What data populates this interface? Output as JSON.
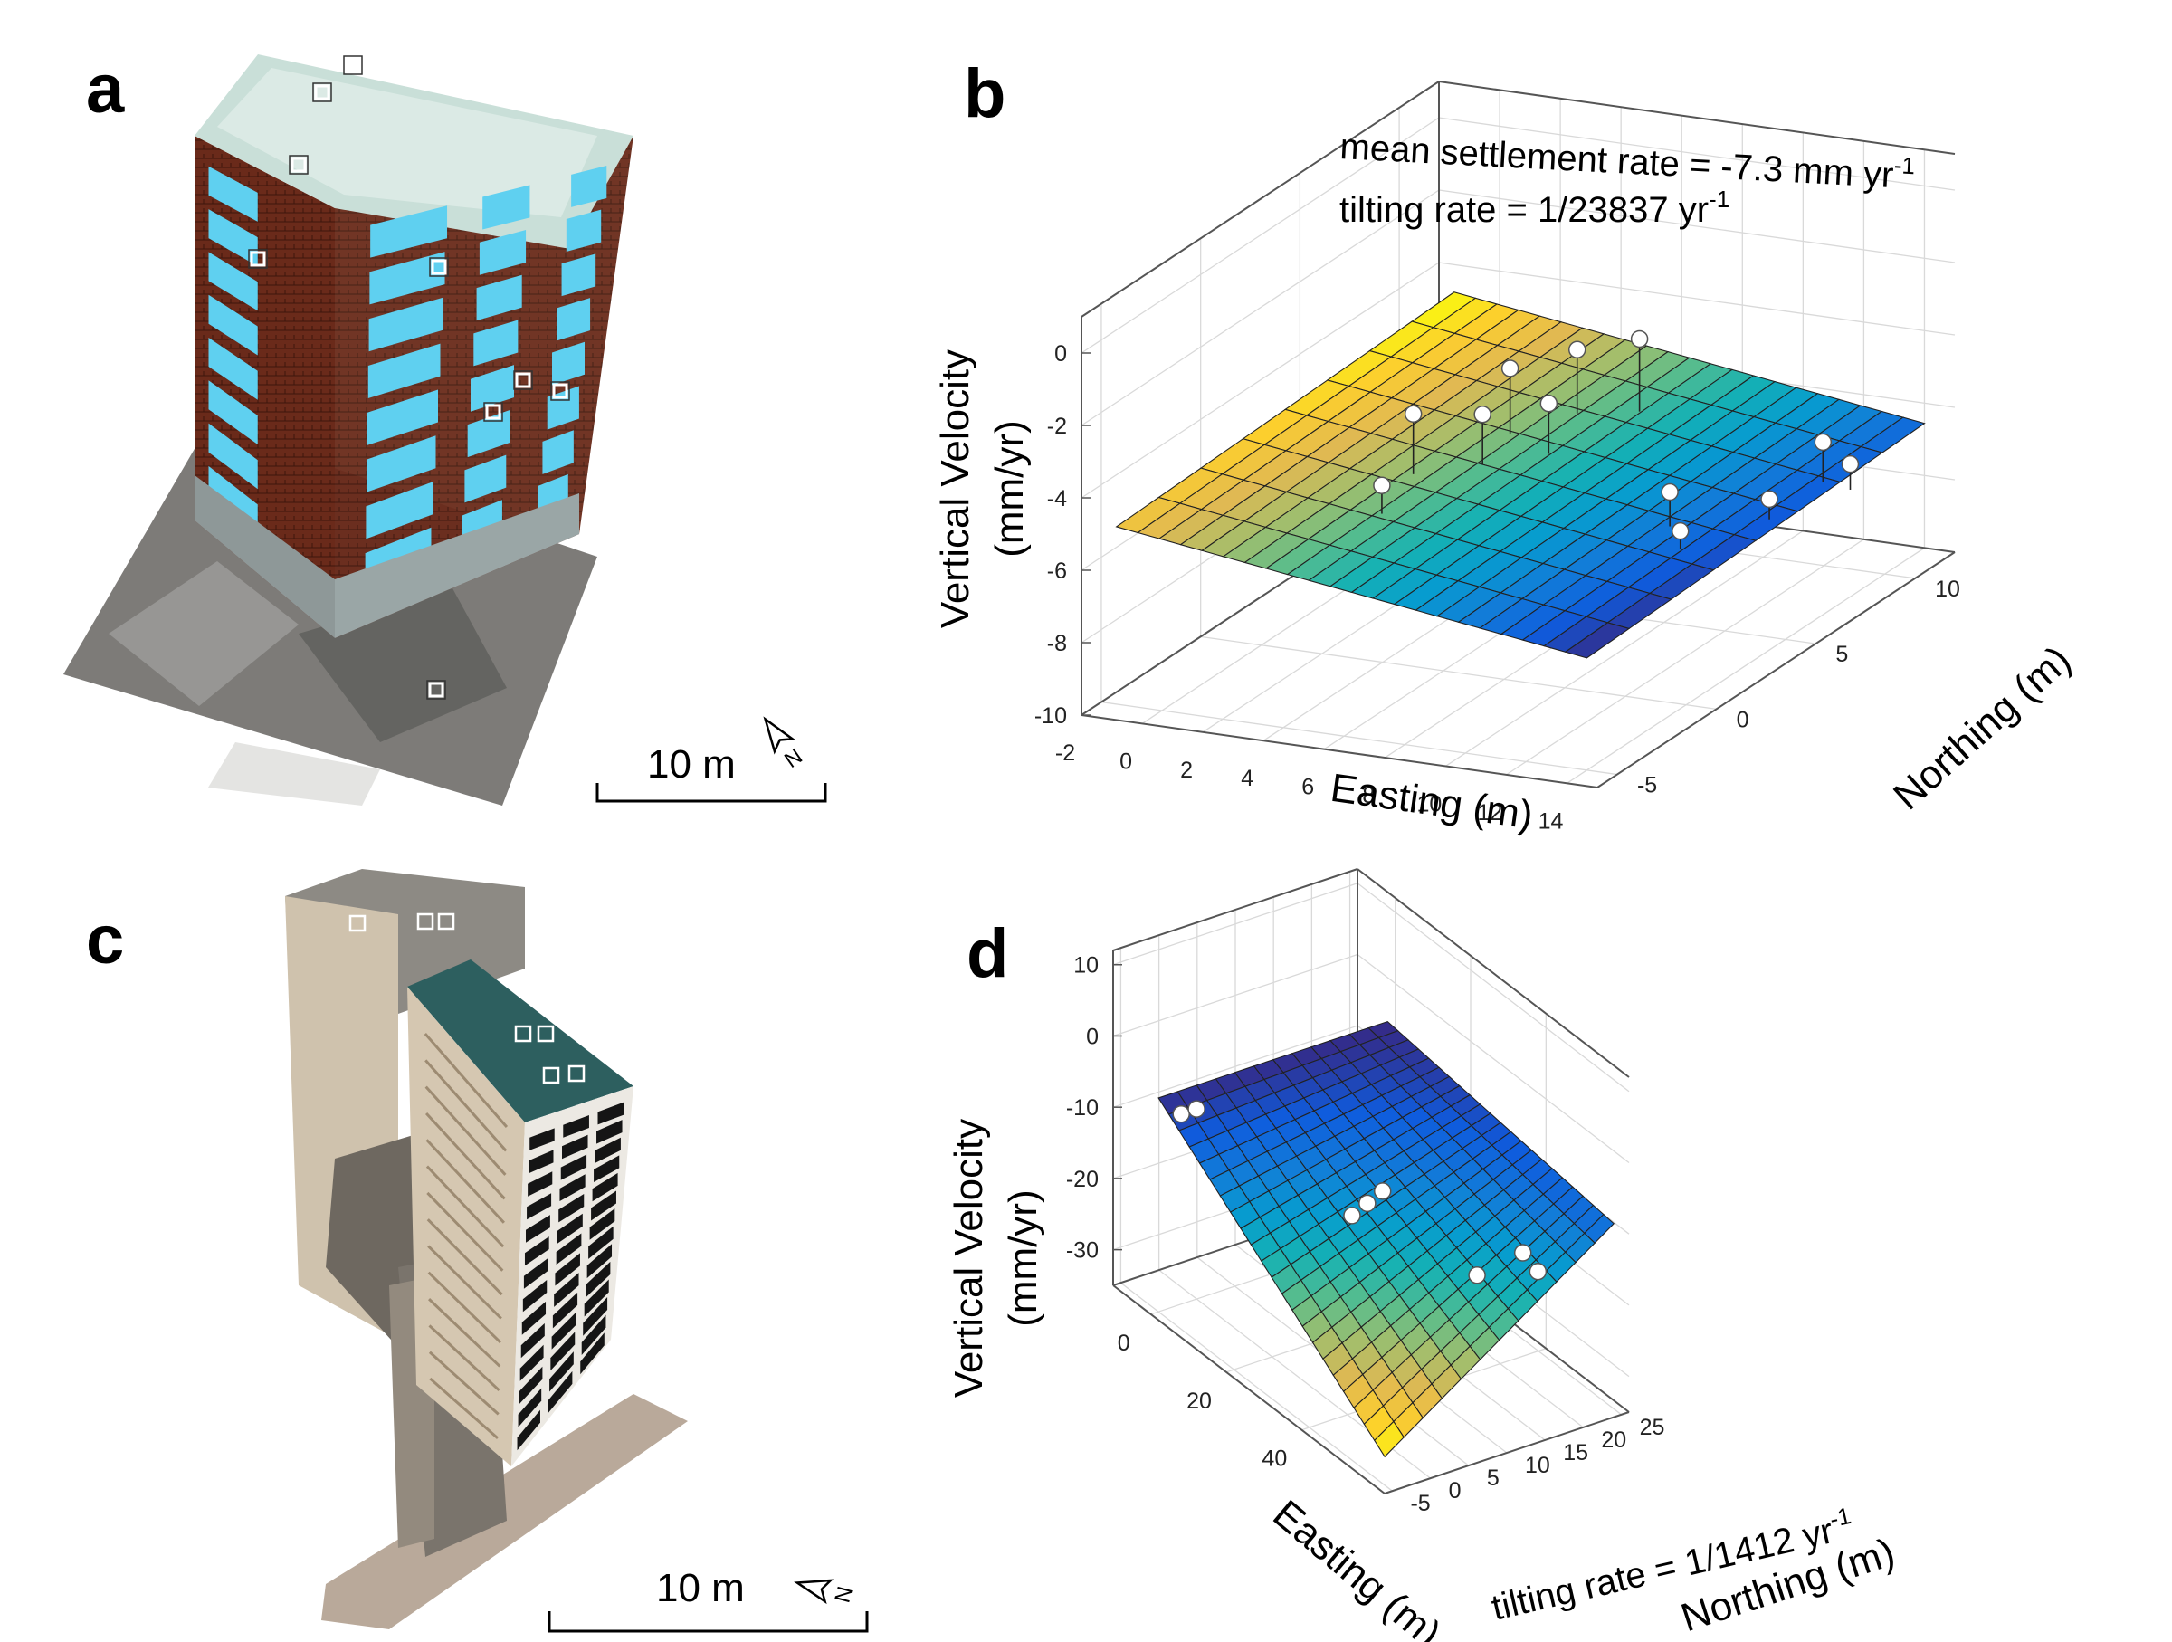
{
  "panels": {
    "a": {
      "label": "a",
      "scale_label": "10 m"
    },
    "b": {
      "label": "b"
    },
    "c": {
      "label": "c",
      "scale_label": "10 m"
    },
    "d": {
      "label": "d"
    }
  },
  "chart_data": [
    {
      "panel": "b",
      "type": "surface",
      "annotations": [
        "mean settlement rate = -7.3 mm yr",
        "-1",
        "tilting rate = 1/23837 yr",
        "-1"
      ],
      "xlabel": "Easting (m)",
      "ylabel": "Northing (m)",
      "zlabel_lines": [
        "Vertical Velocity",
        "(mm/yr)"
      ],
      "xlim": [
        -2,
        15
      ],
      "ylim": [
        -6,
        12
      ],
      "zlim": [
        -10,
        1
      ],
      "xticks": [
        -2,
        0,
        2,
        4,
        6,
        8,
        10,
        12,
        14
      ],
      "yticks": [
        -5,
        0,
        5,
        10
      ],
      "zticks": [
        -10,
        -8,
        -6,
        -4,
        -2,
        0
      ],
      "grid": true,
      "colormap": "parula",
      "surface": {
        "x_range": [
          -1.5,
          14
        ],
        "y_range": [
          -5,
          12
        ],
        "z_at_x_min": -5.0,
        "z_at_x_max": -6.8
      },
      "points": [
        {
          "x": 3.7,
          "y": 2.0,
          "z": -3.9
        },
        {
          "x": 4.3,
          "y": -0.5,
          "z": -4.9
        },
        {
          "x": 4.6,
          "y": 5.5,
          "z": -3.8
        },
        {
          "x": 5.0,
          "y": 3.5,
          "z": -4.3
        },
        {
          "x": 5.5,
          "y": 7.5,
          "z": -3.9
        },
        {
          "x": 6.2,
          "y": 5.0,
          "z": -4.4
        },
        {
          "x": 6.9,
          "y": 8.5,
          "z": -3.8
        },
        {
          "x": 11.5,
          "y": 3.0,
          "z": -5.5
        },
        {
          "x": 12.5,
          "y": 2.0,
          "z": -6.1
        },
        {
          "x": 13.6,
          "y": 7.5,
          "z": -5.5
        },
        {
          "x": 13.6,
          "y": 4.8,
          "z": -6.1
        },
        {
          "x": 14.5,
          "y": 7.5,
          "z": -6.0
        }
      ]
    },
    {
      "panel": "d",
      "type": "surface",
      "annotations": [
        "tilting rate = 1/1412 yr",
        "-1"
      ],
      "xlabel": "Easting (m)",
      "ylabel": "Northing (m)",
      "zlabel_lines": [
        "Vertical Velocity",
        "(mm/yr)"
      ],
      "xlim": [
        -10,
        62
      ],
      "ylim": [
        -6,
        26
      ],
      "zlim": [
        -35,
        12
      ],
      "xticks": [
        0,
        20,
        40
      ],
      "yticks": [
        -5,
        0,
        5,
        10,
        15,
        20,
        25
      ],
      "zticks": [
        -30,
        -20,
        -10,
        0,
        10
      ],
      "grid": true,
      "colormap": "parula",
      "surface": {
        "x_range": [
          0,
          60
        ],
        "y_range": [
          -5,
          25
        ],
        "z_east": -27,
        "z_northeast": -5
      },
      "points": [
        {
          "x": 4,
          "y": -4,
          "z": -6
        },
        {
          "x": 4,
          "y": -2,
          "z": -6
        },
        {
          "x": 25,
          "y": 8,
          "z": -16
        },
        {
          "x": 25,
          "y": 10,
          "z": -15
        },
        {
          "x": 25,
          "y": 12,
          "z": -14
        },
        {
          "x": 46,
          "y": 14,
          "z": -18
        },
        {
          "x": 46,
          "y": 20,
          "z": -17
        },
        {
          "x": 50,
          "y": 20,
          "z": -18
        }
      ]
    }
  ]
}
